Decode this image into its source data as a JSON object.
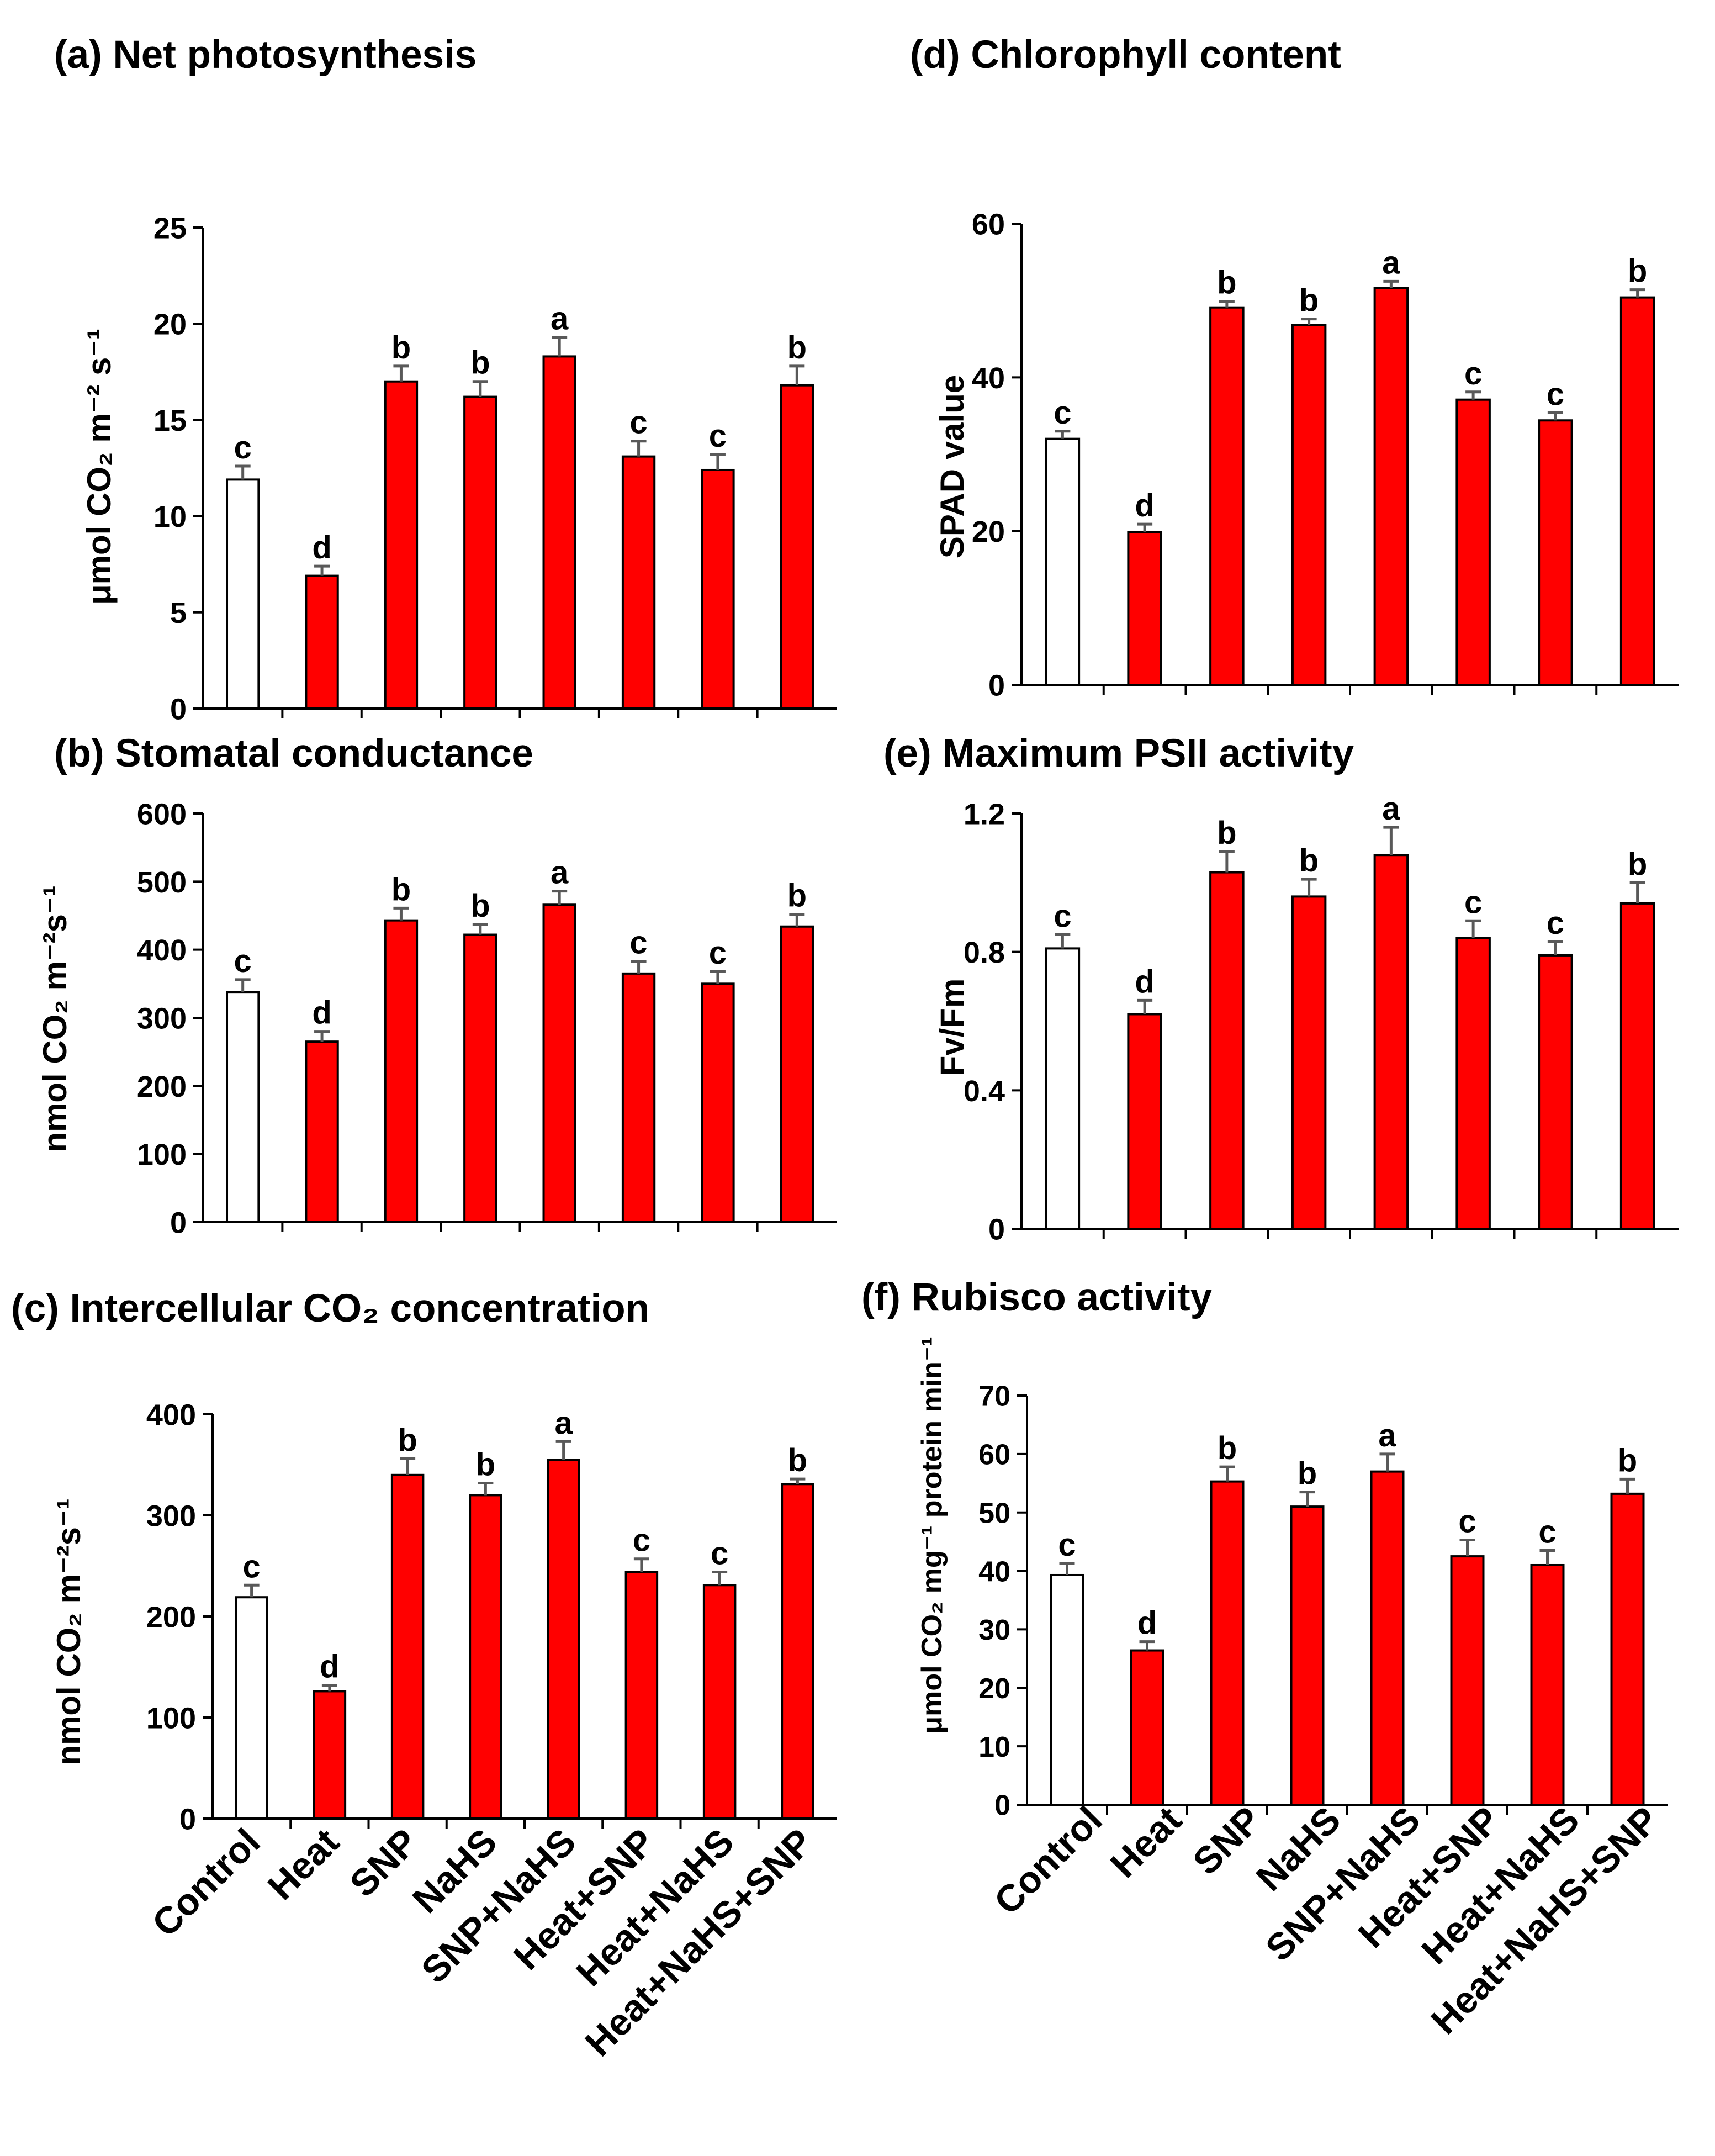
{
  "colors": {
    "control_fill": "#ffffff",
    "treatment_fill": "#ff0000",
    "bar_stroke": "#000000",
    "error_bar": "#595959",
    "axis": "#000000"
  },
  "categories": [
    "Control",
    "Heat",
    "SNP",
    "NaHS",
    "SNP+NaHS",
    "Heat+SNP",
    "Heat+NaHS",
    "Heat+NaHS+SNP"
  ],
  "chart_data": [
    {
      "id": "a",
      "type": "bar",
      "title": "(a) Net photosynthesis",
      "ylabel": "μmol CO₂ m⁻² s⁻¹",
      "ylim": [
        0,
        25
      ],
      "yticks": [
        0,
        5,
        10,
        15,
        20,
        25
      ],
      "ytick_labels": [
        "0",
        "5",
        "10",
        "15",
        "20",
        "25"
      ],
      "values": [
        11.9,
        6.9,
        17.0,
        16.2,
        18.3,
        13.1,
        12.4,
        16.8
      ],
      "errors": [
        0.7,
        0.5,
        0.8,
        0.8,
        1.0,
        0.8,
        0.8,
        1.0
      ],
      "letters": [
        "c",
        "d",
        "b",
        "b",
        "a",
        "c",
        "c",
        "b"
      ]
    },
    {
      "id": "b",
      "type": "bar",
      "title": "(b) Stomatal conductance",
      "ylabel": "nmol CO₂ m⁻²s⁻¹",
      "ylim": [
        0,
        600
      ],
      "yticks": [
        0,
        100,
        200,
        300,
        400,
        500,
        600
      ],
      "ytick_labels": [
        "0",
        "100",
        "200",
        "300",
        "400",
        "500",
        "600"
      ],
      "values": [
        338,
        265,
        443,
        422,
        466,
        365,
        350,
        434
      ],
      "errors": [
        18,
        15,
        18,
        15,
        20,
        18,
        18,
        18
      ],
      "letters": [
        "c",
        "d",
        "b",
        "b",
        "a",
        "c",
        "c",
        "b"
      ]
    },
    {
      "id": "c",
      "type": "bar",
      "title": "(c) Intercellular CO₂ concentration",
      "ylabel": "nmol CO₂ m⁻²s⁻¹",
      "ylim": [
        0,
        400
      ],
      "yticks": [
        0,
        100,
        200,
        300,
        400
      ],
      "ytick_labels": [
        "0",
        "100",
        "200",
        "300",
        "400"
      ],
      "values": [
        219,
        126,
        340,
        320,
        355,
        244,
        231,
        331
      ],
      "errors": [
        12,
        6,
        16,
        12,
        18,
        13,
        13,
        5
      ],
      "letters": [
        "c",
        "d",
        "b",
        "b",
        "a",
        "c",
        "c",
        "b"
      ]
    },
    {
      "id": "d",
      "type": "bar",
      "title": "(d) Chlorophyll content",
      "ylabel": "SPAD value",
      "ylim": [
        0,
        60
      ],
      "yticks": [
        0,
        20,
        40,
        60
      ],
      "ytick_labels": [
        "0",
        "20",
        "40",
        "60"
      ],
      "values": [
        32.0,
        19.9,
        49.1,
        46.8,
        51.6,
        37.1,
        34.4,
        50.4
      ],
      "errors": [
        1.0,
        1.0,
        0.8,
        0.8,
        0.9,
        1.0,
        1.0,
        1.0
      ],
      "letters": [
        "c",
        "d",
        "b",
        "b",
        "a",
        "c",
        "c",
        "b"
      ]
    },
    {
      "id": "e",
      "type": "bar",
      "title": "(e) Maximum PSII activity",
      "ylabel": "Fv/Fm",
      "ylim": [
        0,
        1.2
      ],
      "yticks": [
        0,
        0.4,
        0.8,
        1.2
      ],
      "ytick_labels": [
        "0",
        "0.4",
        "0.8",
        "1.2"
      ],
      "values": [
        0.81,
        0.62,
        1.03,
        0.96,
        1.08,
        0.84,
        0.79,
        0.94
      ],
      "errors": [
        0.04,
        0.04,
        0.06,
        0.05,
        0.08,
        0.05,
        0.04,
        0.06
      ],
      "letters": [
        "c",
        "d",
        "b",
        "b",
        "a",
        "c",
        "c",
        "b"
      ]
    },
    {
      "id": "f",
      "type": "bar",
      "title": "(f) Rubisco activity",
      "ylabel": "μmol CO₂ mg⁻¹ protein min⁻¹",
      "ylim": [
        0,
        70
      ],
      "yticks": [
        0,
        10,
        20,
        30,
        40,
        50,
        60,
        70
      ],
      "ytick_labels": [
        "0",
        "10",
        "20",
        "30",
        "40",
        "50",
        "60",
        "70"
      ],
      "values": [
        39.3,
        26.4,
        55.3,
        51.0,
        57.0,
        42.5,
        41.0,
        53.2
      ],
      "errors": [
        2.0,
        1.5,
        2.5,
        2.5,
        3.0,
        2.8,
        2.5,
        2.5
      ],
      "letters": [
        "c",
        "d",
        "b",
        "b",
        "a",
        "c",
        "c",
        "b"
      ]
    }
  ]
}
